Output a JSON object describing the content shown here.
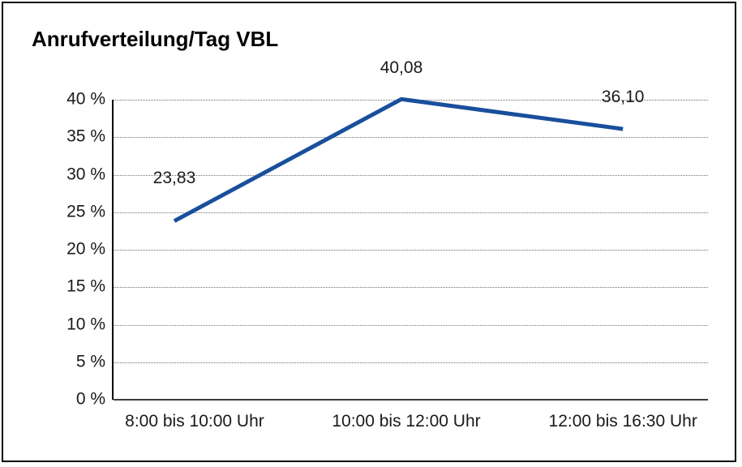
{
  "chart_data": {
    "type": "line",
    "title": "Anrufverteilung/Tag VBL",
    "categories": [
      "8:00 bis 10:00 Uhr",
      "10:00 bis 12:00 Uhr",
      "12:00 bis 16:30 Uhr"
    ],
    "series": [
      {
        "name": "Anrufverteilung/Tag VBL",
        "values": [
          23.83,
          40.08,
          36.1
        ]
      }
    ],
    "data_labels": [
      "23,83",
      "40,08",
      "36,10"
    ],
    "xlabel": "",
    "ylabel": "",
    "ylim": [
      0,
      40
    ],
    "y_ticks": [
      {
        "value": 0,
        "label": "0 %"
      },
      {
        "value": 5,
        "label": "5 %"
      },
      {
        "value": 10,
        "label": "10 %"
      },
      {
        "value": 15,
        "label": "15 %"
      },
      {
        "value": 20,
        "label": "20 %"
      },
      {
        "value": 25,
        "label": "25 %"
      },
      {
        "value": 30,
        "label": "30 %"
      },
      {
        "value": 35,
        "label": "35 %"
      },
      {
        "value": 40,
        "label": "40 %"
      }
    ],
    "grid": "horizontal dotted gridlines at every 5 %, solid baseline at 0 %",
    "legend": "none",
    "colors": {
      "line": "#194f9c",
      "text": "#1a1a1a",
      "axis": "#000000",
      "grid": "#6e6e6e",
      "border": "#000000",
      "background": "#ffffff"
    }
  }
}
